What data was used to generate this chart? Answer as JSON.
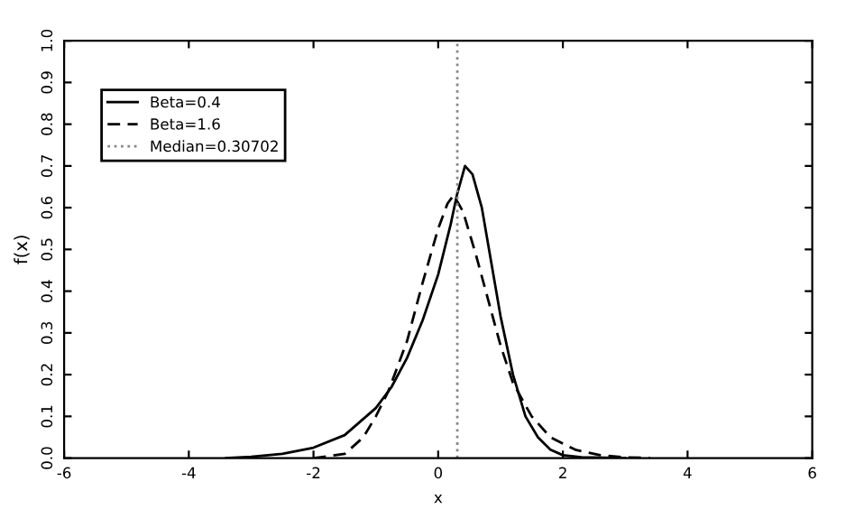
{
  "chart_data": {
    "type": "line",
    "xlabel": "x",
    "ylabel": "f(x)",
    "xlim": [
      -6,
      6
    ],
    "ylim": [
      0,
      1
    ],
    "xticks": [
      -6,
      -4,
      -2,
      0,
      2,
      4,
      6
    ],
    "yticks": [
      {
        "value": 0,
        "label": "0.0"
      },
      {
        "value": 0.1,
        "label": "0.1"
      },
      {
        "value": 0.2,
        "label": "0.2"
      },
      {
        "value": 0.3,
        "label": "0.3"
      },
      {
        "value": 0.4,
        "label": "0.4"
      },
      {
        "value": 0.5,
        "label": "0.5"
      },
      {
        "value": 0.6,
        "label": "0.6"
      },
      {
        "value": 0.7,
        "label": "0.7"
      },
      {
        "value": 0.8,
        "label": "0.8"
      },
      {
        "value": 0.9,
        "label": "0.9"
      },
      {
        "value": 1,
        "label": "1.0"
      }
    ],
    "series": [
      {
        "name": "Beta=0.4",
        "color": "#000000",
        "line_style": "solid",
        "x": [
          -3.4,
          -3,
          -2.5,
          -2,
          -1.5,
          -1,
          -0.75,
          -0.5,
          -0.25,
          0,
          0.2,
          0.3,
          0.43,
          0.55,
          0.7,
          0.85,
          1.0,
          1.2,
          1.4,
          1.6,
          1.8,
          2.0,
          2.3,
          3.0
        ],
        "values": [
          0.0,
          0.003,
          0.01,
          0.025,
          0.055,
          0.12,
          0.17,
          0.24,
          0.33,
          0.44,
          0.56,
          0.63,
          0.7,
          0.68,
          0.6,
          0.47,
          0.34,
          0.2,
          0.1,
          0.05,
          0.02,
          0.007,
          0.002,
          0.0
        ]
      },
      {
        "name": "Beta=1.6",
        "color": "#000000",
        "line_style": "dashed",
        "x": [
          -2,
          -1.5,
          -1.2,
          -1,
          -0.8,
          -0.5,
          -0.25,
          0,
          0.15,
          0.25,
          0.4,
          0.6,
          0.8,
          1.0,
          1.2,
          1.5,
          1.8,
          2.2,
          2.6,
          3.0,
          3.4
        ],
        "values": [
          0.0,
          0.01,
          0.05,
          0.1,
          0.16,
          0.28,
          0.42,
          0.55,
          0.61,
          0.63,
          0.59,
          0.49,
          0.38,
          0.27,
          0.18,
          0.1,
          0.05,
          0.02,
          0.007,
          0.002,
          0.0
        ]
      },
      {
        "name": "Median=0.30702",
        "color": "#888888",
        "line_style": "dotted",
        "x": [
          0.30702,
          0.30702
        ],
        "values": [
          0,
          1
        ]
      }
    ],
    "legend": "top left",
    "grid": false
  }
}
